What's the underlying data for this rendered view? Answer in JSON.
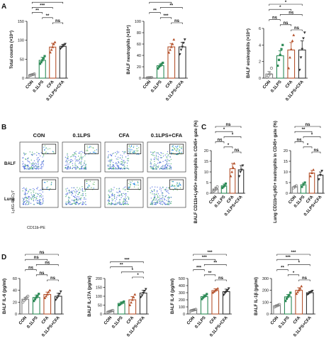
{
  "panel_labels": [
    "A",
    "B",
    "C",
    "D"
  ],
  "colors": {
    "CON": "#7f7f7f",
    "0.1LPS": "#2e8b57",
    "CFA": "#b5532d",
    "0.1LPS+CFA": "#333333"
  },
  "flow": {
    "titles": [
      "CON",
      "0.1LPS",
      "CFA",
      "0.1LPS+CFA"
    ],
    "rows": [
      "BALF",
      "Lung"
    ],
    "y_axis": "Ly6G-PECy7",
    "x_axis": "CD11b-PE"
  },
  "chart_data": [
    {
      "id": "total-counts",
      "type": "bar",
      "categories": [
        "CON",
        "0.1LPS",
        "CFA",
        "0.1LPS+CFA"
      ],
      "values": [
        9,
        47,
        82,
        84
      ],
      "errors": [
        2,
        8,
        10,
        5
      ],
      "points": [
        [
          7,
          8,
          9,
          10,
          11
        ],
        [
          38,
          42,
          47,
          52,
          58
        ],
        [
          68,
          75,
          82,
          90,
          95
        ],
        [
          78,
          82,
          84,
          88,
          90
        ]
      ],
      "ylabel": "Total counts (×10⁴)",
      "ylim": [
        0,
        150
      ],
      "yticks": [
        0,
        50,
        100,
        150
      ],
      "sig": [
        {
          "from": 0,
          "to": 3,
          "label": "***"
        },
        {
          "from": 0,
          "to": 2,
          "label": "***"
        },
        {
          "from": 0,
          "to": 1,
          "label": "**"
        },
        {
          "from": 1,
          "to": 2,
          "label": "**"
        },
        {
          "from": 2,
          "to": 3,
          "label": "ns"
        }
      ]
    },
    {
      "id": "balf-neutrophils",
      "type": "bar",
      "categories": [
        "CON",
        "0.1LPS",
        "CFA",
        "0.1LPS+CFA"
      ],
      "values": [
        1,
        22,
        55,
        55
      ],
      "errors": [
        0.5,
        3,
        6,
        8
      ],
      "points": [
        [
          0.5,
          0.8,
          1,
          1.2
        ],
        [
          17,
          20,
          22,
          25,
          27
        ],
        [
          45,
          50,
          55,
          60,
          68
        ],
        [
          42,
          50,
          55,
          62,
          68
        ]
      ],
      "ylabel": "BALF neutrophils (×10⁴)",
      "ylim": [
        0,
        100
      ],
      "yticks": [
        0,
        20,
        40,
        60,
        80,
        100
      ],
      "sig": [
        {
          "from": 0,
          "to": 3,
          "label": "***"
        },
        {
          "from": 0,
          "to": 2,
          "label": "***"
        },
        {
          "from": 1,
          "to": 3,
          "label": "**"
        },
        {
          "from": 0,
          "to": 1,
          "label": "**"
        },
        {
          "from": 1,
          "to": 2,
          "label": "***"
        },
        {
          "from": 2,
          "to": 3,
          "label": "ns"
        }
      ]
    },
    {
      "id": "balf-eosinophils",
      "type": "bar",
      "categories": [
        "CON",
        "0.1LPS",
        "CFA",
        "0.1LPS+CFA"
      ],
      "values": [
        0.5,
        2.7,
        3.4,
        3.4
      ],
      "errors": [
        0.3,
        0.6,
        0.9,
        1.1
      ],
      "points": [
        [
          0.1,
          0.3,
          0.5,
          1.2
        ],
        [
          1.5,
          2.2,
          2.8,
          3.5,
          4.0
        ],
        [
          1.2,
          2.5,
          3.5,
          4.5,
          5.2
        ],
        [
          1.0,
          2.5,
          3.5,
          4.8,
          5.5
        ]
      ],
      "ylabel": "BALF eosinophils (×10⁴)",
      "ylim": [
        0,
        6
      ],
      "yticks": [
        0,
        2,
        4,
        6
      ],
      "sig": [
        {
          "from": 0,
          "to": 3,
          "label": "*"
        },
        {
          "from": 0,
          "to": 2,
          "label": "*"
        },
        {
          "from": 1,
          "to": 3,
          "label": "ns"
        },
        {
          "from": 0,
          "to": 1,
          "label": "ns"
        },
        {
          "from": 1,
          "to": 2,
          "label": "ns"
        },
        {
          "from": 2,
          "to": 3,
          "label": "ns"
        }
      ]
    },
    {
      "id": "balf-cd11b-pct",
      "type": "bar",
      "categories": [
        "CON",
        "0.1LPS",
        "CFA",
        "0.1LPS+CFA"
      ],
      "values": [
        2,
        3.5,
        11.5,
        11
      ],
      "errors": [
        0.8,
        0.8,
        2.5,
        2
      ],
      "points": [
        [
          1,
          1.5,
          2,
          3
        ],
        [
          2.5,
          3,
          3.5,
          4.5
        ],
        [
          8,
          10,
          12,
          14
        ],
        [
          8,
          10,
          11,
          13
        ]
      ],
      "ylabel": "BALF CD11b+Ly6G+ neutrophils in CD45+ gate (%)",
      "ylim": [
        0,
        20
      ],
      "yticks": [
        0,
        5,
        10,
        15,
        20
      ],
      "sig": [
        {
          "from": 0,
          "to": 3,
          "label": "ns"
        },
        {
          "from": 0,
          "to": 2,
          "label": "*"
        },
        {
          "from": 1,
          "to": 3,
          "label": "*"
        },
        {
          "from": 0,
          "to": 1,
          "label": "ns"
        },
        {
          "from": 1,
          "to": 2,
          "label": "*"
        },
        {
          "from": 2,
          "to": 3,
          "label": "ns"
        }
      ]
    },
    {
      "id": "lung-cd11b-pct",
      "type": "bar",
      "categories": [
        "CON",
        "0.1LPS",
        "CFA",
        "0.1LPS+CFA"
      ],
      "values": [
        3,
        4,
        9.5,
        8.5
      ],
      "errors": [
        0.5,
        0.8,
        1.2,
        1.5
      ],
      "points": [
        [
          2.5,
          3,
          3.5
        ],
        [
          3,
          4,
          5
        ],
        [
          8,
          9.5,
          11
        ],
        [
          6.5,
          8.5,
          10.5
        ]
      ],
      "ylabel": "Lung CD11b+Ly6G+ neutrophils in CD45+ gate (%)",
      "ylim": [
        0,
        20
      ],
      "yticks": [
        0,
        5,
        10,
        15,
        20
      ],
      "sig": [
        {
          "from": 0,
          "to": 3,
          "label": "ns"
        },
        {
          "from": 0,
          "to": 2,
          "label": "**"
        },
        {
          "from": 1,
          "to": 3,
          "label": "*"
        },
        {
          "from": 0,
          "to": 1,
          "label": "ns"
        },
        {
          "from": 1,
          "to": 2,
          "label": "*"
        },
        {
          "from": 2,
          "to": 3,
          "label": "ns"
        }
      ]
    },
    {
      "id": "balf-il6",
      "type": "bar",
      "categories": [
        "CON",
        "0.1LPS",
        "CFA",
        "0.1LPS+CFA"
      ],
      "values": [
        25,
        28,
        33,
        30
      ],
      "errors": [
        3,
        4,
        4,
        5
      ],
      "points": [
        [
          20,
          23,
          25,
          28,
          30
        ],
        [
          22,
          25,
          28,
          31,
          34
        ],
        [
          27,
          30,
          33,
          37,
          40
        ],
        [
          24,
          27,
          30,
          34,
          38
        ]
      ],
      "ylabel": "BALF IL-6 (pg/ml)",
      "ylim": [
        0,
        60
      ],
      "yticks": [
        0,
        20,
        40,
        60
      ],
      "sig": [
        {
          "from": 0,
          "to": 3,
          "label": "ns"
        },
        {
          "from": 0,
          "to": 2,
          "label": "ns"
        },
        {
          "from": 1,
          "to": 3,
          "label": "ns"
        },
        {
          "from": 0,
          "to": 1,
          "label": "ns"
        },
        {
          "from": 1,
          "to": 2,
          "label": "ns"
        },
        {
          "from": 2,
          "to": 3,
          "label": "ns"
        }
      ]
    },
    {
      "id": "balf-il17a",
      "type": "bar",
      "categories": [
        "CON",
        "0.1LPS",
        "CFA",
        "0.1LPS+CFA"
      ],
      "values": [
        15,
        60,
        80,
        118
      ],
      "errors": [
        4,
        8,
        18,
        15
      ],
      "points": [
        [
          10,
          13,
          15,
          18,
          20
        ],
        [
          50,
          55,
          60,
          65,
          70
        ],
        [
          50,
          65,
          80,
          95,
          110
        ],
        [
          95,
          105,
          118,
          130,
          140
        ]
      ],
      "ylabel": "BALF IL-17A (pg/ml)",
      "ylim": [
        0,
        200
      ],
      "yticks": [
        0,
        50,
        100,
        150,
        200
      ],
      "sig": [
        {
          "from": 0,
          "to": 3,
          "label": "***"
        },
        {
          "from": 0,
          "to": 2,
          "label": "**"
        },
        {
          "from": 1,
          "to": 3,
          "label": "*"
        },
        {
          "from": 2,
          "to": 3,
          "label": "*"
        }
      ]
    },
    {
      "id": "balf-il9",
      "type": "bar",
      "categories": [
        "CON",
        "0.1LPS",
        "CFA",
        "0.1LPS+CFA"
      ],
      "values": [
        55,
        245,
        330,
        315
      ],
      "errors": [
        8,
        25,
        25,
        35
      ],
      "points": [
        [
          45,
          50,
          55,
          60,
          65
        ],
        [
          210,
          230,
          245,
          260,
          280
        ],
        [
          300,
          315,
          330,
          345,
          360
        ],
        [
          270,
          295,
          315,
          335,
          360
        ]
      ],
      "ylabel": "BALF IL-9 (pg/ml)",
      "ylim": [
        0,
        500
      ],
      "yticks": [
        0,
        100,
        200,
        300,
        400,
        500
      ],
      "sig": [
        {
          "from": 0,
          "to": 3,
          "label": "***"
        },
        {
          "from": 0,
          "to": 2,
          "label": "***"
        },
        {
          "from": 1,
          "to": 3,
          "label": "**"
        },
        {
          "from": 0,
          "to": 1,
          "label": "***"
        },
        {
          "from": 1,
          "to": 2,
          "label": "**"
        },
        {
          "from": 2,
          "to": 3,
          "label": "ns"
        }
      ]
    },
    {
      "id": "balf-il1b",
      "type": "bar",
      "categories": [
        "CON",
        "0.1LPS",
        "CFA",
        "0.1LPS+CFA"
      ],
      "values": [
        70,
        145,
        200,
        180
      ],
      "errors": [
        8,
        20,
        22,
        10
      ],
      "points": [
        [
          60,
          65,
          70,
          75,
          80
        ],
        [
          110,
          130,
          145,
          160,
          180
        ],
        [
          170,
          185,
          200,
          215,
          235
        ],
        [
          165,
          172,
          180,
          188,
          195
        ]
      ],
      "ylabel": "BALF IL-1β (pg/ml)",
      "ylim": [
        0,
        300
      ],
      "yticks": [
        0,
        100,
        200,
        300
      ],
      "sig": [
        {
          "from": 0,
          "to": 3,
          "label": "***"
        },
        {
          "from": 0,
          "to": 2,
          "label": "***"
        },
        {
          "from": 1,
          "to": 3,
          "label": "*"
        },
        {
          "from": 0,
          "to": 1,
          "label": "**"
        },
        {
          "from": 1,
          "to": 2,
          "label": "*"
        },
        {
          "from": 2,
          "to": 3,
          "label": "ns"
        }
      ]
    }
  ]
}
